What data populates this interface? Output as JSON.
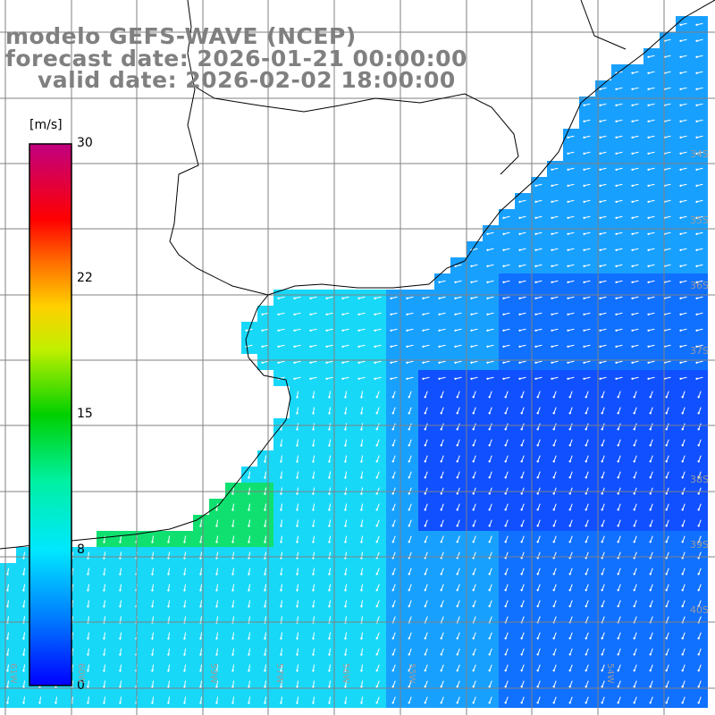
{
  "header": {
    "line1": "modelo GEFS-WAVE (NCEP)",
    "line2": "forecast date: 2026-01-21 00:00:00",
    "line3": "valid date: 2026-02-02 18:00:00"
  },
  "colorbar": {
    "unit": "[m/s]",
    "ticks": [
      {
        "label": "30",
        "value": 30
      },
      {
        "label": "22",
        "value": 22.5
      },
      {
        "label": "15",
        "value": 15
      },
      {
        "label": "8",
        "value": 7.5
      },
      {
        "label": "0",
        "value": 0
      }
    ],
    "min": 0,
    "max": 30
  },
  "lat_labels": [
    "34S",
    "35S",
    "36S",
    "37S",
    "38S",
    "39S",
    "40S"
  ],
  "lon_labels": [
    "61W",
    "60W",
    "59W",
    "57W",
    "56W",
    "55W",
    "54W"
  ],
  "colors": {
    "land": "#ffffff",
    "grid": "#808080",
    "coast": "#000000",
    "arrow": "#ffffff"
  }
}
